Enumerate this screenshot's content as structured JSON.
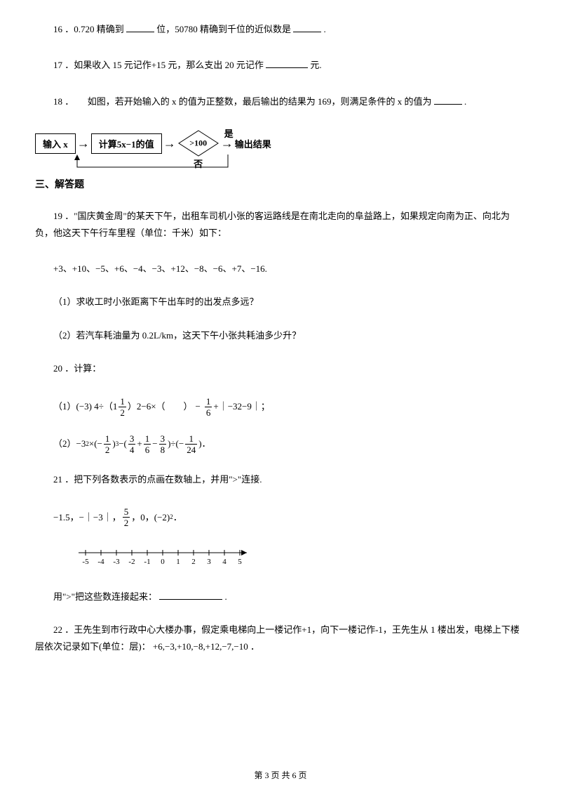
{
  "q16": {
    "num": "16",
    "text_a": "．0.720 精确到",
    "text_b": "位，50780 精确到千位的近似数是",
    "text_c": "."
  },
  "q17": {
    "num": "17",
    "text_a": "．如果收入 15 元记作+15 元，那么支出 20 元记作",
    "text_b": "元."
  },
  "q18": {
    "num": "18",
    "text_a": "．　　如图，若开始输入的 x 的值为正整数，最后输出的结果为 169，则满足条件的 x 的值为",
    "text_b": "."
  },
  "flowchart": {
    "input": "输入 x",
    "calc": "计算5x−1的值",
    "cond": ">100",
    "yes": "是",
    "no": "否",
    "output": "输出结果"
  },
  "section3": "三、解答题",
  "q19": {
    "num": "19",
    "intro": "．\"国庆黄金周\"的某天下午，出租车司机小张的客运路线是在南北走向的阜益路上，如果规定向南为正、向北为负，他这天下午行车里程（单位：千米）如下：",
    "data": "+3、+10、−5、+6、−4、−3、+12、−8、−6、+7、−16.",
    "sub1": "（1）求收工时小张距离下午出车时的出发点多远？",
    "sub2": "（2）若汽车耗油量为 0.2L/km，这天下午小张共耗油多少升？"
  },
  "q20": {
    "num": "20",
    "text": "．计算：",
    "part1_prefix": "（1）(−3) 4÷（1",
    "part1_mid1": "）2−6×（　　）",
    "part1_mid2": "+｜−32−9｜；",
    "part2_prefix": "（2）"
  },
  "q21": {
    "num": "21",
    "text": "．把下列各数表示的点画在数轴上，并用\">\"连接.",
    "nums_a": "−1.5，−｜−3｜，",
    "nums_b": "，0，",
    "nums_c": "．",
    "connect": "用\">\"把这些数连接起来：",
    "period": "."
  },
  "q22": {
    "num": "22",
    "text_a": "．王先生到市行政中心大楼办事，假定乘电梯向上一楼记作+1，向下一楼记作-1，王先生从 1 楼出发，电梯上下楼层依次记录如下(单位：层)：",
    "data": "+6,−3,+10,−8,+12,−7,−10",
    "text_b": "．"
  },
  "footer": {
    "text_a": "第 3 页 共 6 页"
  },
  "numberline": {
    "ticks": [
      "-5",
      "-4",
      "-3",
      "-2",
      "-1",
      "0",
      "1",
      "2",
      "3",
      "4",
      "5"
    ]
  }
}
